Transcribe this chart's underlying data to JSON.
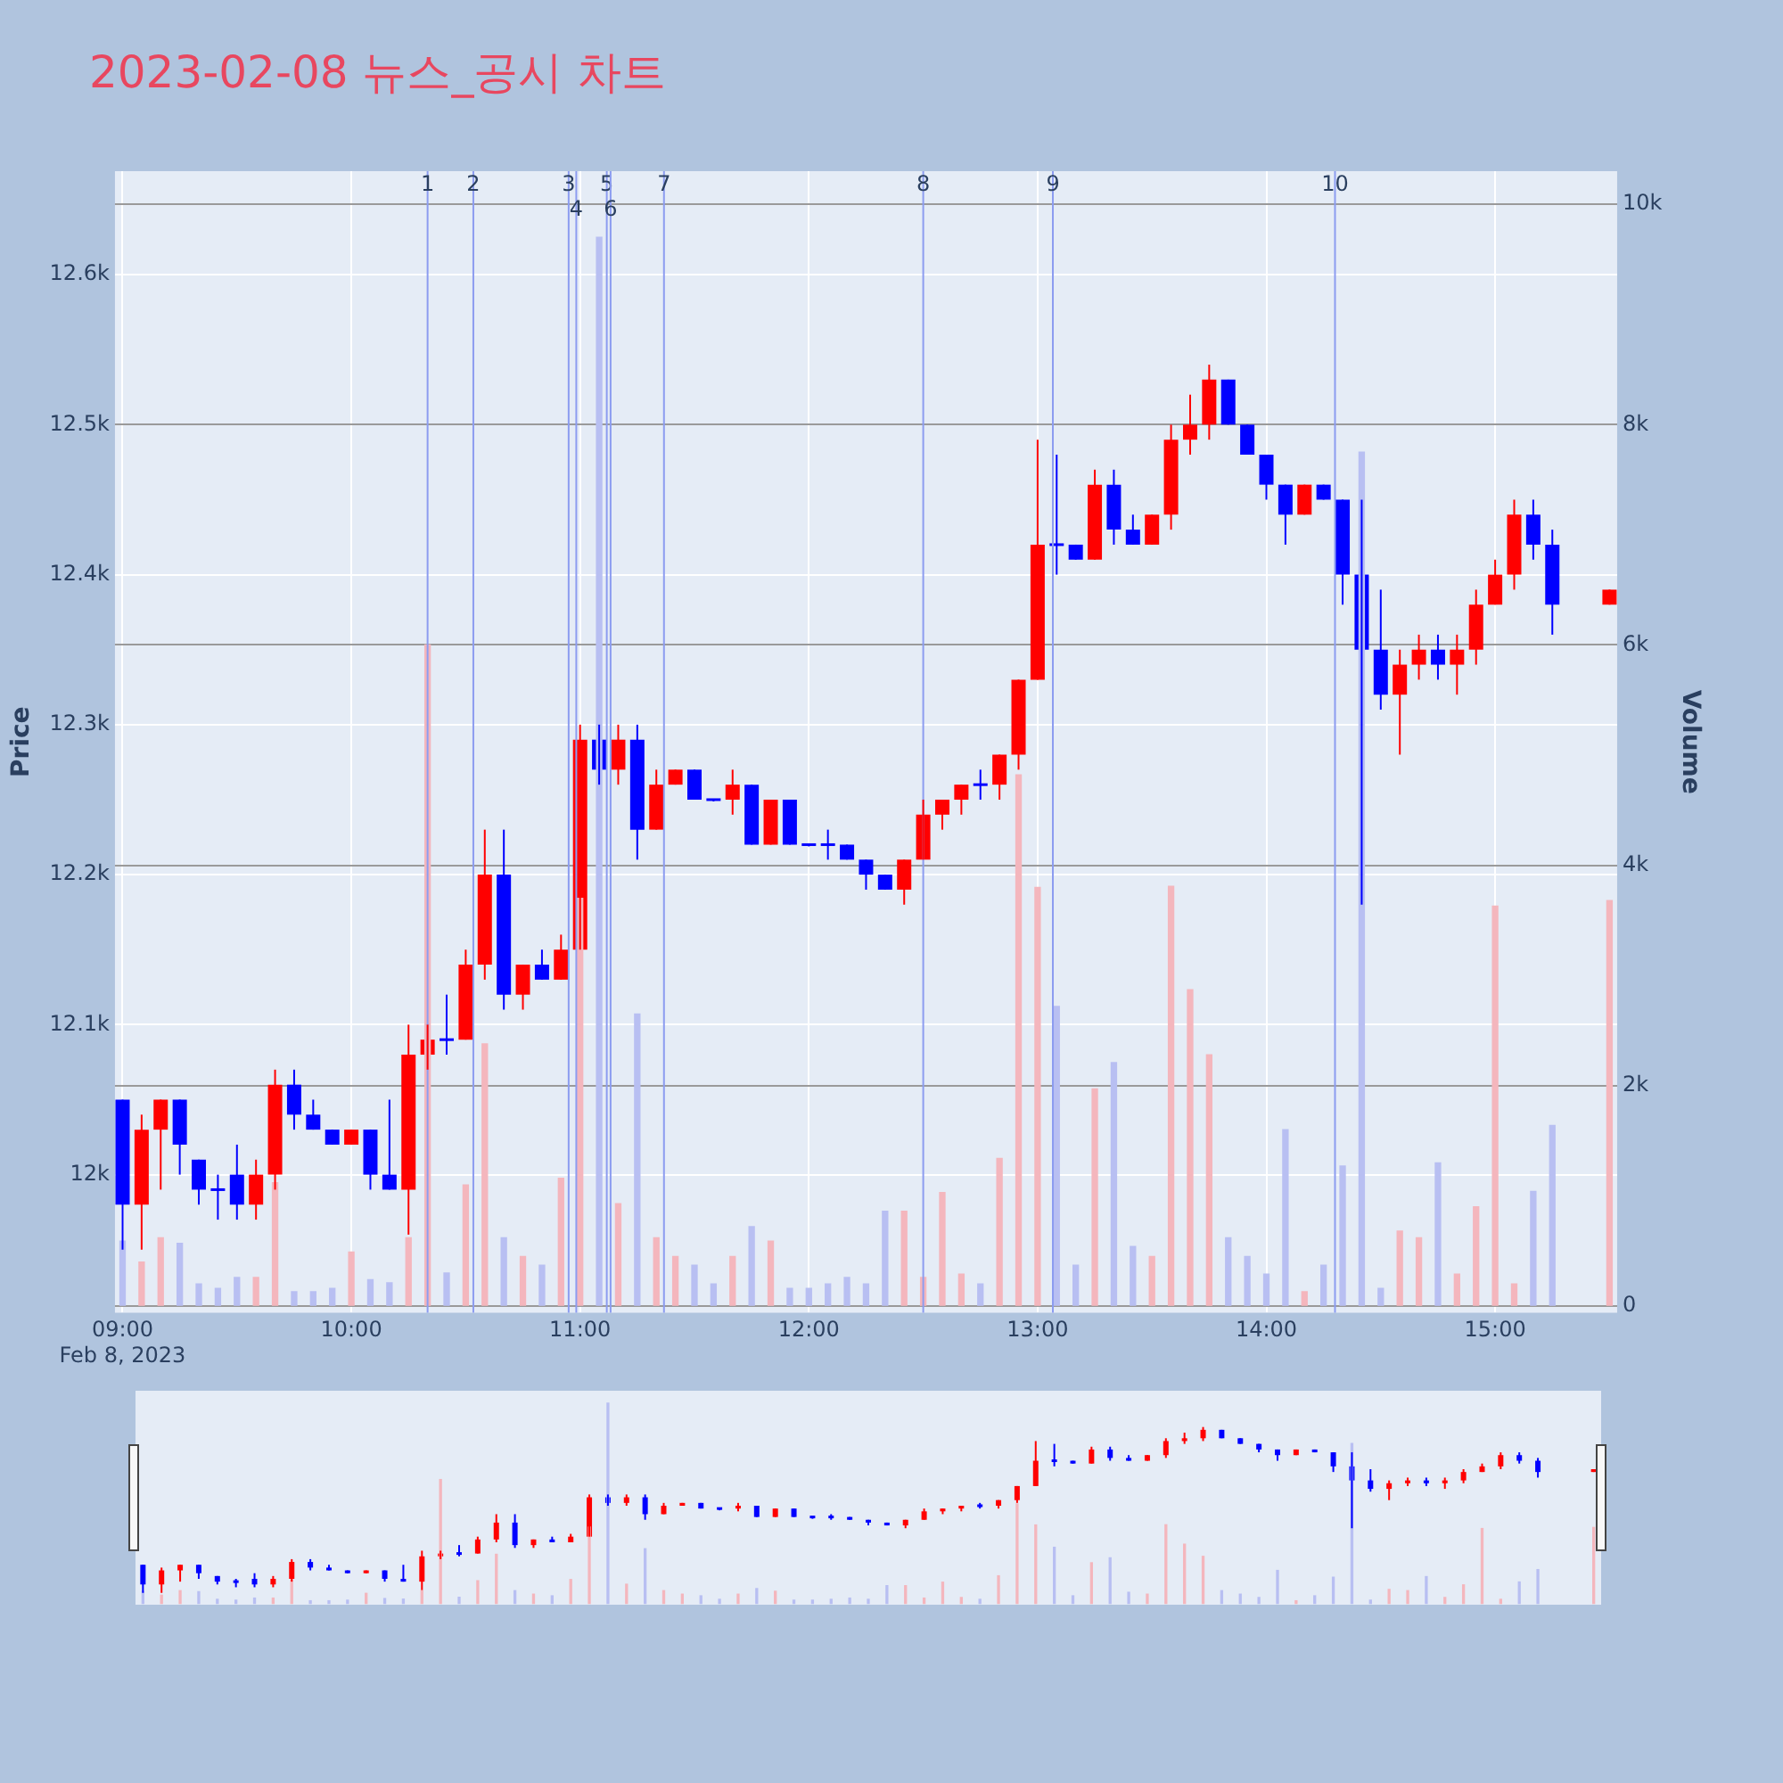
{
  "chart_data": {
    "type": "candlestick",
    "title": "2023-02-08 뉴스_공시 차트",
    "ylabel": "Price",
    "y2label": "Volume",
    "grid": true,
    "x": [
      "2023-02-08T09:00",
      "2023-02-08T09:05",
      "2023-02-08T09:10",
      "2023-02-08T09:15",
      "2023-02-08T09:20",
      "2023-02-08T09:25",
      "2023-02-08T09:30",
      "2023-02-08T09:35",
      "2023-02-08T09:40",
      "2023-02-08T09:45",
      "2023-02-08T09:50",
      "2023-02-08T09:55",
      "2023-02-08T10:00",
      "2023-02-08T10:05",
      "2023-02-08T10:10",
      "2023-02-08T10:15",
      "2023-02-08T10:20",
      "2023-02-08T10:25",
      "2023-02-08T10:30",
      "2023-02-08T10:35",
      "2023-02-08T10:40",
      "2023-02-08T10:45",
      "2023-02-08T10:50",
      "2023-02-08T10:55",
      "2023-02-08T11:00",
      "2023-02-08T11:05",
      "2023-02-08T11:10",
      "2023-02-08T11:15",
      "2023-02-08T11:20",
      "2023-02-08T11:25",
      "2023-02-08T11:30",
      "2023-02-08T11:35",
      "2023-02-08T11:40",
      "2023-02-08T11:45",
      "2023-02-08T11:50",
      "2023-02-08T11:55",
      "2023-02-08T12:00",
      "2023-02-08T12:05",
      "2023-02-08T12:10",
      "2023-02-08T12:15",
      "2023-02-08T12:20",
      "2023-02-08T12:25",
      "2023-02-08T12:30",
      "2023-02-08T12:35",
      "2023-02-08T12:40",
      "2023-02-08T12:45",
      "2023-02-08T12:50",
      "2023-02-08T12:55",
      "2023-02-08T13:00",
      "2023-02-08T13:05",
      "2023-02-08T13:10",
      "2023-02-08T13:15",
      "2023-02-08T13:20",
      "2023-02-08T13:25",
      "2023-02-08T13:30",
      "2023-02-08T13:35",
      "2023-02-08T13:40",
      "2023-02-08T13:45",
      "2023-02-08T13:50",
      "2023-02-08T13:55",
      "2023-02-08T14:00",
      "2023-02-08T14:05",
      "2023-02-08T14:10",
      "2023-02-08T14:15",
      "2023-02-08T14:20",
      "2023-02-08T14:25",
      "2023-02-08T14:30",
      "2023-02-08T14:35",
      "2023-02-08T14:40",
      "2023-02-08T14:45",
      "2023-02-08T14:50",
      "2023-02-08T14:55",
      "2023-02-08T15:00",
      "2023-02-08T15:05",
      "2023-02-08T15:10",
      "2023-02-08T15:15",
      "2023-02-08T15:30"
    ],
    "xlim": [
      "2023-02-08T08:58",
      "2023-02-08T15:32"
    ],
    "xticks": [
      {
        "value": "2023-02-08T09:00",
        "label": "09:00\nFeb 8, 2023"
      },
      {
        "value": "2023-02-08T10:00",
        "label": "10:00"
      },
      {
        "value": "2023-02-08T11:00",
        "label": "11:00"
      },
      {
        "value": "2023-02-08T12:00",
        "label": "12:00"
      },
      {
        "value": "2023-02-08T13:00",
        "label": "13:00"
      },
      {
        "value": "2023-02-08T14:00",
        "label": "14:00"
      },
      {
        "value": "2023-02-08T15:00",
        "label": "15:00"
      }
    ],
    "ylim": [
      11908,
      12669
    ],
    "yticks": [
      {
        "value": 12000,
        "label": "12k"
      },
      {
        "value": 12100,
        "label": "12.1k"
      },
      {
        "value": 12200,
        "label": "12.2k"
      },
      {
        "value": 12300,
        "label": "12.3k"
      },
      {
        "value": 12400,
        "label": "12.4k"
      },
      {
        "value": 12500,
        "label": "12.5k"
      },
      {
        "value": 12600,
        "label": "12.6k"
      }
    ],
    "y2lim": [
      -60,
      10300
    ],
    "y2ticks": [
      0,
      {
        "value": 2000,
        "label": "2k"
      },
      {
        "value": 4000,
        "label": "4k"
      },
      {
        "value": 6000,
        "label": "6k"
      },
      {
        "value": 8000,
        "label": "8k"
      },
      {
        "value": 10000,
        "label": "10k"
      }
    ],
    "series": [
      {
        "ohlc": [
          [
            12050,
            12050,
            11950,
            11980
          ],
          [
            11980,
            12040,
            11950,
            12030
          ],
          [
            12030,
            12050,
            11990,
            12050
          ],
          [
            12050,
            12050,
            12000,
            12020
          ],
          [
            12010,
            12010,
            11980,
            11990
          ],
          [
            11990,
            12000,
            11970,
            11990
          ],
          [
            12000,
            12020,
            11970,
            11980
          ],
          [
            11980,
            12010,
            11970,
            12000
          ],
          [
            12000,
            12070,
            11990,
            12060
          ],
          [
            12060,
            12070,
            12030,
            12040
          ],
          [
            12040,
            12050,
            12030,
            12030
          ],
          [
            12030,
            12030,
            12020,
            12020
          ],
          [
            12020,
            12030,
            12020,
            12030
          ],
          [
            12030,
            12030,
            11990,
            12000
          ],
          [
            12000,
            12050,
            11990,
            11990
          ],
          [
            11990,
            12100,
            11960,
            12080
          ],
          [
            12080,
            12100,
            12070,
            12090
          ],
          [
            12090,
            12120,
            12080,
            12090
          ],
          [
            12090,
            12150,
            12090,
            12140
          ],
          [
            12140,
            12230,
            12130,
            12200
          ],
          [
            12200,
            12230,
            12110,
            12120
          ],
          [
            12120,
            12140,
            12110,
            12140
          ],
          [
            12140,
            12150,
            12130,
            12130
          ],
          [
            12130,
            12160,
            12130,
            12150
          ],
          [
            12150,
            12300,
            12150,
            12290
          ],
          [
            12290,
            12300,
            12260,
            12270
          ],
          [
            12270,
            12300,
            12260,
            12290
          ],
          [
            12290,
            12300,
            12210,
            12230
          ],
          [
            12230,
            12270,
            12230,
            12260
          ],
          [
            12260,
            12270,
            12260,
            12270
          ],
          [
            12270,
            12270,
            12250,
            12250
          ],
          [
            12250,
            12250,
            12250,
            12250
          ],
          [
            12250,
            12270,
            12240,
            12260
          ],
          [
            12260,
            12260,
            12220,
            12220
          ],
          [
            12220,
            12250,
            12220,
            12250
          ],
          [
            12250,
            12250,
            12220,
            12220
          ],
          [
            12220,
            12220,
            12220,
            12220
          ],
          [
            12220,
            12230,
            12210,
            12220
          ],
          [
            12220,
            12220,
            12210,
            12210
          ],
          [
            12210,
            12210,
            12190,
            12200
          ],
          [
            12200,
            12200,
            12190,
            12190
          ],
          [
            12190,
            12210,
            12180,
            12210
          ],
          [
            12210,
            12250,
            12210,
            12240
          ],
          [
            12240,
            12250,
            12230,
            12250
          ],
          [
            12250,
            12260,
            12240,
            12260
          ],
          [
            12260,
            12270,
            12250,
            12260
          ],
          [
            12260,
            12280,
            12250,
            12280
          ],
          [
            12280,
            12330,
            12270,
            12330
          ],
          [
            12330,
            12490,
            12330,
            12420
          ],
          [
            12420,
            12480,
            12400,
            12420
          ],
          [
            12420,
            12420,
            12410,
            12410
          ],
          [
            12410,
            12470,
            12410,
            12460
          ],
          [
            12460,
            12470,
            12420,
            12430
          ],
          [
            12430,
            12440,
            12420,
            12420
          ],
          [
            12420,
            12440,
            12420,
            12440
          ],
          [
            12440,
            12500,
            12430,
            12490
          ],
          [
            12490,
            12520,
            12480,
            12500
          ],
          [
            12500,
            12540,
            12490,
            12530
          ],
          [
            12530,
            12530,
            12500,
            12500
          ],
          [
            12500,
            12500,
            12480,
            12480
          ],
          [
            12480,
            12480,
            12450,
            12460
          ],
          [
            12460,
            12460,
            12420,
            12440
          ],
          [
            12440,
            12460,
            12440,
            12460
          ],
          [
            12460,
            12460,
            12450,
            12450
          ],
          [
            12450,
            12450,
            12380,
            12400
          ],
          [
            12400,
            12450,
            12180,
            12350
          ],
          [
            12350,
            12390,
            12310,
            12320
          ],
          [
            12320,
            12350,
            12280,
            12340
          ],
          [
            12340,
            12360,
            12330,
            12350
          ],
          [
            12350,
            12360,
            12330,
            12340
          ],
          [
            12340,
            12360,
            12320,
            12350
          ],
          [
            12350,
            12390,
            12340,
            12380
          ],
          [
            12380,
            12410,
            12380,
            12400
          ],
          [
            12400,
            12450,
            12390,
            12440
          ],
          [
            12440,
            12450,
            12410,
            12420
          ],
          [
            12420,
            12430,
            12360,
            12380
          ],
          [
            12380,
            12390,
            12380,
            12390
          ]
        ],
        "colors": [
          "#0000ff",
          "#ff0000",
          "#ff0000",
          "#0000ff",
          "#0000ff",
          "#0000ff",
          "#0000ff",
          "#ff0000",
          "#ff0000",
          "#0000ff",
          "#0000ff",
          "#0000ff",
          "#ff0000",
          "#0000ff",
          "#0000ff",
          "#ff0000",
          "#ff0000",
          "#0000ff",
          "#ff0000",
          "#ff0000",
          "#0000ff",
          "#ff0000",
          "#0000ff",
          "#ff0000",
          "#ff0000",
          "#0000ff",
          "#ff0000",
          "#0000ff",
          "#ff0000",
          "#ff0000",
          "#0000ff",
          "#0000ff",
          "#ff0000",
          "#0000ff",
          "#ff0000",
          "#0000ff",
          "#0000ff",
          "#0000ff",
          "#0000ff",
          "#0000ff",
          "#0000ff",
          "#ff0000",
          "#ff0000",
          "#ff0000",
          "#ff0000",
          "#0000ff",
          "#ff0000",
          "#ff0000",
          "#ff0000",
          "#0000ff",
          "#0000ff",
          "#ff0000",
          "#0000ff",
          "#0000ff",
          "#ff0000",
          "#ff0000",
          "#ff0000",
          "#ff0000",
          "#0000ff",
          "#0000ff",
          "#0000ff",
          "#0000ff",
          "#ff0000",
          "#0000ff",
          "#0000ff",
          "#0000ff",
          "#0000ff",
          "#ff0000",
          "#ff0000",
          "#0000ff",
          "#ff0000",
          "#ff0000",
          "#ff0000",
          "#ff0000",
          "#0000ff",
          "#0000ff",
          "#ff0000"
        ]
      },
      {
        "type": "bar",
        "axis": "y2",
        "values": [
          590,
          400,
          620,
          570,
          200,
          160,
          260,
          260,
          1120,
          130,
          130,
          160,
          490,
          240,
          210,
          620,
          6000,
          300,
          1100,
          2380,
          620,
          450,
          370,
          1160,
          3700,
          9700,
          930,
          2650,
          620,
          450,
          370,
          200,
          450,
          720,
          590,
          160,
          160,
          200,
          260,
          200,
          860,
          860,
          260,
          1030,
          290,
          200,
          1340,
          4820,
          3800,
          2720,
          370,
          1970,
          2210,
          540,
          450,
          3810,
          2870,
          2280,
          620,
          450,
          290,
          1600,
          130,
          370,
          1270,
          7750,
          160,
          680,
          620,
          1300,
          290,
          900,
          3630,
          200,
          1040,
          1640,
          3680
        ],
        "colors": [
          "#b8bff2",
          "#f4b6bd",
          "#f4b6bd",
          "#b8bff2",
          "#b8bff2",
          "#b8bff2",
          "#b8bff2",
          "#f4b6bd",
          "#f4b6bd",
          "#b8bff2",
          "#b8bff2",
          "#b8bff2",
          "#f4b6bd",
          "#b8bff2",
          "#b8bff2",
          "#f4b6bd",
          "#f4b6bd",
          "#b8bff2",
          "#f4b6bd",
          "#f4b6bd",
          "#b8bff2",
          "#f4b6bd",
          "#b8bff2",
          "#f4b6bd",
          "#f4b6bd",
          "#b8bff2",
          "#f4b6bd",
          "#b8bff2",
          "#f4b6bd",
          "#f4b6bd",
          "#b8bff2",
          "#b8bff2",
          "#f4b6bd",
          "#b8bff2",
          "#f4b6bd",
          "#b8bff2",
          "#b8bff2",
          "#b8bff2",
          "#b8bff2",
          "#b8bff2",
          "#b8bff2",
          "#f4b6bd",
          "#f4b6bd",
          "#f4b6bd",
          "#f4b6bd",
          "#b8bff2",
          "#f4b6bd",
          "#f4b6bd",
          "#f4b6bd",
          "#b8bff2",
          "#b8bff2",
          "#f4b6bd",
          "#b8bff2",
          "#b8bff2",
          "#f4b6bd",
          "#f4b6bd",
          "#f4b6bd",
          "#f4b6bd",
          "#b8bff2",
          "#b8bff2",
          "#b8bff2",
          "#b8bff2",
          "#f4b6bd",
          "#b8bff2",
          "#b8bff2",
          "#b8bff2",
          "#b8bff2",
          "#f4b6bd",
          "#f4b6bd",
          "#b8bff2",
          "#f4b6bd",
          "#f4b6bd",
          "#f4b6bd",
          "#f4b6bd",
          "#b8bff2",
          "#b8bff2",
          "#f4b6bd"
        ]
      }
    ],
    "ref_lines": [
      {
        "axis": "x",
        "value": "2023-02-08T10:20",
        "label": "1",
        "color": "#8c9cf0"
      },
      {
        "axis": "x",
        "value": "2023-02-08T10:32",
        "label": "2",
        "color": "#8c9cf0"
      },
      {
        "axis": "x",
        "value": "2023-02-08T10:57",
        "label": "3",
        "color": "#8c9cf0"
      },
      {
        "axis": "x",
        "value": "2023-02-08T10:59",
        "label": "4",
        "color": "#8c9cf0"
      },
      {
        "axis": "x",
        "value": "2023-02-08T11:07",
        "label": "5",
        "color": "#8c9cf0"
      },
      {
        "axis": "x",
        "value": "2023-02-08T11:08",
        "label": "6",
        "color": "#8c9cf0"
      },
      {
        "axis": "x",
        "value": "2023-02-08T11:22",
        "label": "7",
        "color": "#8c9cf0"
      },
      {
        "axis": "x",
        "value": "2023-02-08T12:30",
        "label": "8",
        "color": "#8c9cf0"
      },
      {
        "axis": "x",
        "value": "2023-02-08T13:04",
        "label": "9",
        "color": "#8c9cf0"
      },
      {
        "axis": "x",
        "value": "2023-02-08T14:18",
        "label": "10",
        "color": "#8c9cf0"
      }
    ]
  }
}
